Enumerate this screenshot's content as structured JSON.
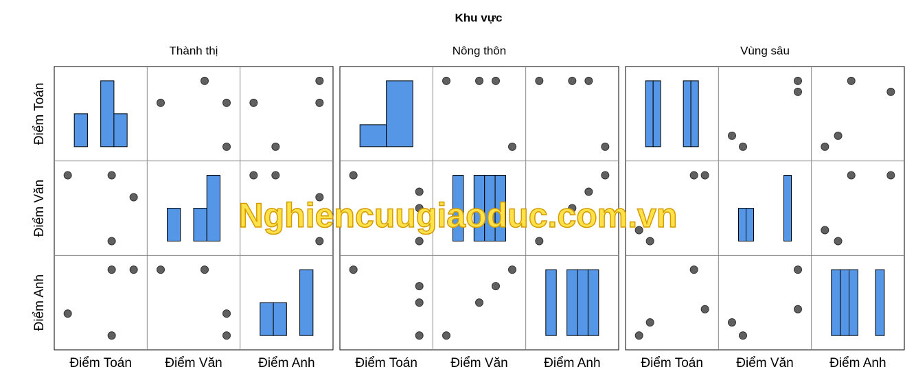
{
  "chart_data": {
    "type": "scatter-matrix",
    "title": "Khu vực",
    "variables": [
      "Điểm Toán",
      "Điểm Văn",
      "Điểm Anh"
    ],
    "panels": [
      {
        "title": "Thành thị",
        "records": [
          [
            6,
            8,
            7
          ],
          [
            8,
            8,
            6
          ],
          [
            9,
            7,
            9
          ],
          [
            8,
            5,
            9
          ]
        ]
      },
      {
        "title": "Nông thôn",
        "records": [
          [
            7,
            9,
            9
          ],
          [
            8,
            5,
            5
          ],
          [
            8,
            7,
            7
          ],
          [
            8,
            8,
            8
          ]
        ]
      },
      {
        "title": "Vùng sâu",
        "records": [
          [
            3,
            4,
            4
          ],
          [
            4,
            3,
            5
          ],
          [
            8,
            9,
            9
          ],
          [
            9,
            9,
            6
          ]
        ]
      }
    ],
    "bar_color": "#5596e6",
    "point_color": "#606060",
    "watermark": "Nghiencuugiaoduc.com.vn"
  }
}
